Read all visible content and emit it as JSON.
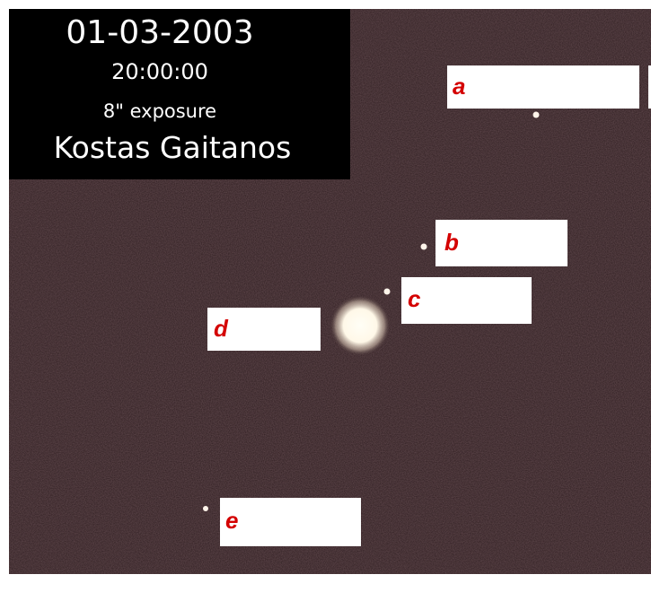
{
  "caption": {
    "date": "01-03-2003",
    "time": "20:00:00",
    "exposure": "8\" exposure",
    "author": "Kostas Gaitanos"
  },
  "labels": [
    "a",
    "b",
    "c",
    "d",
    "e"
  ]
}
